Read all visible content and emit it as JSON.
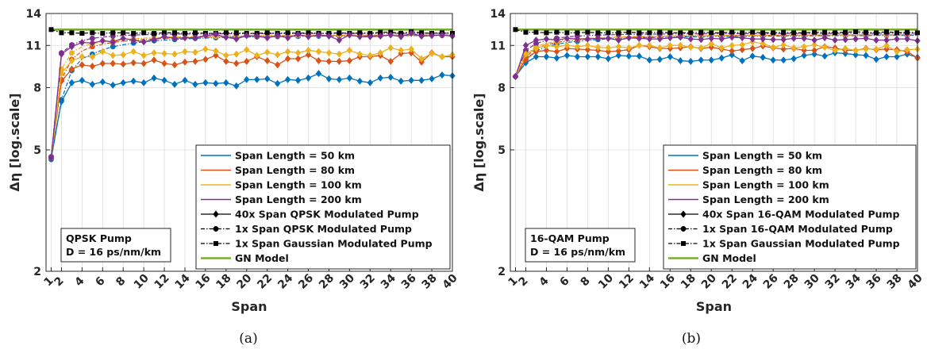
{
  "chart_data": [
    {
      "type": "line",
      "panel_caption": "(a)",
      "xlabel": "Span",
      "ylabel": "Δη [log.scale]",
      "xlim": [
        0.5,
        40
      ],
      "ylim": [
        2,
        14
      ],
      "yscale": "log",
      "xticks": [
        1,
        2,
        4,
        6,
        8,
        10,
        12,
        14,
        16,
        18,
        20,
        22,
        24,
        26,
        28,
        30,
        32,
        34,
        36,
        38,
        40
      ],
      "yticks": [
        2,
        5,
        8,
        11,
        14
      ],
      "grid": true,
      "legend_placement": "bottom-right",
      "info_box": [
        "QPSK Pump",
        "D = 16 ps/nm/km"
      ],
      "series": [
        {
          "name": "Span Length = 50 km",
          "style": "40x",
          "color": "#0072BD",
          "values": [
            4.7,
            7.2,
            8.3,
            8.45,
            8.2,
            8.35,
            8.15,
            8.3,
            8.4,
            8.3,
            8.6,
            8.45,
            8.2,
            8.45,
            8.2,
            8.3,
            8.25,
            8.3,
            8.1,
            8.5,
            8.5,
            8.55,
            8.25,
            8.5,
            8.45,
            8.6,
            8.9,
            8.55,
            8.5,
            8.6,
            8.4,
            8.3,
            8.6,
            8.65,
            8.4,
            8.45,
            8.45,
            8.55,
            8.8,
            8.75
          ]
        },
        {
          "name": "Span Length = 80 km",
          "style": "40x",
          "color": "#D95319",
          "values": [
            4.7,
            8.4,
            9.2,
            9.5,
            9.4,
            9.6,
            9.6,
            9.55,
            9.65,
            9.6,
            9.85,
            9.6,
            9.5,
            9.7,
            9.75,
            9.9,
            10.2,
            9.75,
            9.6,
            9.75,
            10.1,
            9.8,
            9.5,
            9.95,
            9.95,
            10.25,
            9.8,
            9.75,
            9.75,
            9.8,
            10.1,
            10.1,
            10.2,
            9.75,
            10.35,
            10.4,
            9.7,
            10.4,
            10.1,
            10.1
          ]
        },
        {
          "name": "Span Length = 100 km",
          "style": "40x",
          "color": "#EDB120",
          "values": [
            4.7,
            8.9,
            9.8,
            10.1,
            10.1,
            10.5,
            10.2,
            10.25,
            10.5,
            10.2,
            10.4,
            10.35,
            10.3,
            10.5,
            10.45,
            10.7,
            10.55,
            10.2,
            10.3,
            10.65,
            10.2,
            10.45,
            10.25,
            10.5,
            10.4,
            10.6,
            10.5,
            10.4,
            10.3,
            10.6,
            10.3,
            10.2,
            10.4,
            10.8,
            10.6,
            10.7,
            9.95,
            10.35,
            10.1,
            10.25
          ]
        },
        {
          "name": "Span Length = 200 km",
          "style": "40x",
          "color": "#7E2F8E",
          "values": [
            4.7,
            10.3,
            10.9,
            11.25,
            11.2,
            11.4,
            11.3,
            11.6,
            11.45,
            11.3,
            11.5,
            11.75,
            11.6,
            11.65,
            11.65,
            11.85,
            11.95,
            11.7,
            11.55,
            11.85,
            11.8,
            11.65,
            11.85,
            11.65,
            11.95,
            11.75,
            11.9,
            11.8,
            11.45,
            11.9,
            11.75,
            11.75,
            11.8,
            11.9,
            11.75,
            12.05,
            11.8,
            11.85,
            11.9,
            11.8
          ]
        },
        {
          "name": "40x Span QPSK Modulated Pump",
          "style": "40x",
          "color": "#000000",
          "values": []
        },
        {
          "name": "1x Span QPSK Modulated Pump",
          "style": "1x",
          "color": "#000000",
          "values": []
        },
        {
          "name": "1x Span Gaussian Modulated Pump",
          "style": "gauss",
          "color": "#000000",
          "values": []
        },
        {
          "name": "GN Model",
          "style": "gn",
          "color": "#77AC30",
          "values": []
        }
      ],
      "curves_1x": [
        {
          "color": "#0072BD",
          "values": [
            4.65,
            7.3,
            9.1,
            9.95,
            10.3,
            10.65,
            10.9,
            11.05,
            11.2,
            11.3,
            11.4,
            11.45,
            11.5,
            11.55,
            11.6,
            11.63,
            11.66,
            11.68,
            11.7,
            11.72,
            11.74,
            11.75,
            11.76,
            11.77,
            11.78,
            11.79,
            11.8,
            11.8,
            11.81,
            11.82,
            11.82,
            11.83,
            11.83,
            11.84,
            11.84,
            11.85,
            11.85,
            11.85,
            11.86,
            11.86
          ]
        },
        {
          "color": "#D95319",
          "values": [
            4.7,
            8.5,
            9.9,
            10.55,
            10.9,
            11.1,
            11.25,
            11.35,
            11.45,
            11.5,
            11.55,
            11.6,
            11.64,
            11.68,
            11.7,
            11.72,
            11.74,
            11.76,
            11.78,
            11.79,
            11.8,
            11.81,
            11.82,
            11.83,
            11.84,
            11.85,
            11.85,
            11.86,
            11.86,
            11.87,
            11.87,
            11.88,
            11.88,
            11.88,
            11.89,
            11.89,
            11.89,
            11.9,
            11.9,
            11.9
          ]
        },
        {
          "color": "#EDB120",
          "values": [
            4.7,
            9.2,
            10.4,
            10.9,
            11.15,
            11.3,
            11.4,
            11.5,
            11.56,
            11.62,
            11.66,
            11.7,
            11.73,
            11.75,
            11.77,
            11.79,
            11.8,
            11.82,
            11.83,
            11.84,
            11.85,
            11.86,
            11.87,
            11.87,
            11.88,
            11.88,
            11.89,
            11.89,
            11.9,
            11.9,
            11.9,
            11.91,
            11.91,
            11.91,
            11.92,
            11.92,
            11.92,
            11.92,
            11.93,
            11.93
          ]
        },
        {
          "color": "#7E2F8E",
          "values": [
            4.75,
            10.4,
            11.05,
            11.4,
            11.6,
            11.72,
            11.8,
            11.86,
            11.9,
            11.93,
            11.95,
            11.97,
            11.98,
            11.99,
            12.0,
            12.0,
            12.01,
            12.01,
            12.02,
            12.02,
            12.02,
            12.03,
            12.03,
            12.03,
            12.03,
            12.04,
            12.04,
            12.04,
            12.04,
            12.04,
            12.05,
            12.05,
            12.05,
            12.05,
            12.05,
            12.05,
            12.05,
            12.06,
            12.06,
            12.06
          ]
        }
      ],
      "gaussian_values": [
        12.4,
        12.1,
        12.1,
        12.05,
        12.1,
        12.05,
        12.1,
        12.1,
        12.05,
        12.1,
        12.05,
        12.1,
        12.1,
        12.05,
        12.1,
        12.05,
        12.05,
        12.1,
        12.1,
        12.05,
        12.05,
        12.1,
        12.05,
        12.1,
        12.05,
        12.1,
        12.05,
        12.05,
        12.1,
        12.05,
        12.1,
        12.05,
        12.15,
        12.15,
        12.05,
        12.2,
        12.1,
        12.05,
        12.1,
        12.05
      ],
      "gn_value": 12.4
    },
    {
      "type": "line",
      "panel_caption": "(b)",
      "xlabel": "Span",
      "ylabel": "Δη [log.scale]",
      "xlim": [
        0.5,
        40
      ],
      "ylim": [
        2,
        14
      ],
      "yscale": "log",
      "xticks": [
        1,
        2,
        4,
        6,
        8,
        10,
        12,
        14,
        16,
        18,
        20,
        22,
        24,
        26,
        28,
        30,
        32,
        34,
        36,
        38,
        40
      ],
      "yticks": [
        2,
        5,
        8,
        11,
        14
      ],
      "grid": true,
      "legend_placement": "bottom-right",
      "info_box": [
        "16-QAM Pump",
        "D = 16 ps/nm/km"
      ],
      "series": [
        {
          "name": "Span Length = 50 km",
          "style": "40x",
          "color": "#0072BD",
          "values": [
            8.7,
            9.65,
            10.1,
            10.1,
            10.0,
            10.2,
            10.1,
            10.1,
            10.1,
            9.95,
            10.2,
            10.15,
            10.15,
            9.85,
            9.9,
            10.1,
            9.8,
            9.75,
            9.85,
            9.85,
            10.0,
            10.25,
            9.8,
            10.15,
            10.05,
            9.85,
            9.85,
            9.95,
            10.2,
            10.3,
            10.15,
            10.4,
            10.35,
            10.25,
            10.2,
            9.9,
            10.1,
            10.1,
            10.3,
            10.05
          ]
        },
        {
          "name": "Span Length = 80 km",
          "style": "40x",
          "color": "#D95319",
          "values": [
            8.7,
            9.9,
            10.5,
            10.6,
            10.5,
            10.75,
            10.7,
            10.65,
            10.6,
            10.5,
            10.55,
            10.65,
            11.0,
            10.9,
            10.75,
            10.75,
            10.8,
            10.9,
            10.75,
            10.85,
            10.7,
            10.55,
            10.65,
            10.75,
            10.95,
            10.8,
            10.7,
            10.75,
            10.6,
            10.6,
            10.9,
            10.8,
            10.6,
            10.6,
            10.75,
            10.65,
            10.7,
            10.65,
            10.5,
            10.0
          ]
        },
        {
          "name": "Span Length = 100 km",
          "style": "40x",
          "color": "#EDB120",
          "values": [
            8.7,
            10.3,
            10.75,
            11.0,
            10.9,
            11.0,
            10.9,
            11.0,
            10.85,
            10.8,
            10.9,
            10.8,
            11.0,
            11.0,
            10.8,
            11.0,
            11.0,
            10.85,
            10.8,
            11.15,
            10.8,
            11.0,
            11.05,
            11.3,
            11.15,
            10.85,
            11.05,
            10.8,
            10.9,
            11.05,
            10.85,
            10.6,
            10.75,
            10.6,
            10.7,
            10.7,
            11.0,
            10.5,
            10.65,
            10.7
          ]
        },
        {
          "name": "Span Length = 200 km",
          "style": "40x",
          "color": "#7E2F8E",
          "values": [
            8.7,
            11.0,
            11.45,
            11.55,
            11.45,
            11.6,
            11.55,
            11.55,
            11.6,
            11.6,
            11.45,
            11.65,
            11.6,
            11.55,
            11.55,
            11.65,
            11.7,
            11.55,
            11.5,
            11.6,
            11.55,
            11.7,
            11.65,
            11.55,
            11.55,
            11.5,
            11.5,
            11.6,
            11.6,
            11.45,
            11.65,
            11.45,
            11.5,
            11.55,
            11.6,
            11.45,
            11.45,
            11.55,
            11.55,
            11.4
          ]
        },
        {
          "name": "40x Span 16-QAM Modulated Pump",
          "style": "40x",
          "color": "#000000",
          "values": []
        },
        {
          "name": "1x Span 16-QAM Modulated Pump",
          "style": "1x",
          "color": "#000000",
          "values": []
        },
        {
          "name": "1x Span Gaussian Modulated Pump",
          "style": "gauss",
          "color": "#000000",
          "values": []
        },
        {
          "name": "GN Model",
          "style": "gn",
          "color": "#77AC30",
          "values": []
        }
      ],
      "curves_1x": [
        {
          "color": "#0072BD",
          "values": [
            8.7,
            9.9,
            10.55,
            10.9,
            11.1,
            11.25,
            11.35,
            11.43,
            11.5,
            11.55,
            11.59,
            11.62,
            11.65,
            11.67,
            11.69,
            11.71,
            11.73,
            11.74,
            11.75,
            11.76,
            11.77,
            11.78,
            11.79,
            11.8,
            11.8,
            11.81,
            11.82,
            11.82,
            11.83,
            11.83,
            11.84,
            11.84,
            11.85,
            11.85,
            11.85,
            11.86,
            11.86,
            11.86,
            11.87,
            11.87
          ]
        },
        {
          "color": "#D95319",
          "values": [
            8.7,
            10.1,
            10.75,
            11.05,
            11.25,
            11.38,
            11.47,
            11.54,
            11.6,
            11.64,
            11.68,
            11.71,
            11.73,
            11.75,
            11.77,
            11.79,
            11.8,
            11.81,
            11.82,
            11.83,
            11.84,
            11.85,
            11.86,
            11.86,
            11.87,
            11.87,
            11.88,
            11.88,
            11.89,
            11.89,
            11.89,
            11.9,
            11.9,
            11.9,
            11.91,
            11.91,
            11.91,
            11.91,
            11.92,
            11.92
          ]
        },
        {
          "color": "#EDB120",
          "values": [
            8.7,
            10.3,
            10.9,
            11.18,
            11.35,
            11.47,
            11.55,
            11.61,
            11.66,
            11.7,
            11.73,
            11.76,
            11.78,
            11.8,
            11.81,
            11.83,
            11.84,
            11.85,
            11.86,
            11.87,
            11.87,
            11.88,
            11.89,
            11.89,
            11.9,
            11.9,
            11.91,
            11.91,
            11.91,
            11.92,
            11.92,
            11.92,
            11.93,
            11.93,
            11.93,
            11.93,
            11.94,
            11.94,
            11.94,
            11.94
          ]
        },
        {
          "color": "#7E2F8E",
          "values": [
            8.7,
            10.6,
            11.15,
            11.45,
            11.62,
            11.73,
            11.8,
            11.85,
            11.89,
            11.92,
            11.94,
            11.96,
            11.97,
            11.98,
            11.99,
            12.0,
            12.0,
            12.01,
            12.01,
            12.02,
            12.02,
            12.02,
            12.03,
            12.03,
            12.03,
            12.03,
            12.04,
            12.04,
            12.04,
            12.04,
            12.04,
            12.05,
            12.05,
            12.05,
            12.05,
            12.05,
            12.05,
            12.05,
            12.06,
            12.06
          ]
        }
      ],
      "gaussian_values": [
        12.4,
        12.15,
        12.15,
        12.1,
        12.15,
        12.1,
        12.1,
        12.15,
        12.1,
        12.1,
        12.1,
        12.15,
        12.1,
        12.1,
        12.15,
        12.1,
        12.1,
        12.1,
        12.15,
        12.1,
        12.1,
        12.15,
        12.1,
        12.15,
        12.1,
        12.1,
        12.15,
        12.1,
        12.1,
        12.15,
        12.15,
        12.1,
        12.15,
        12.2,
        12.15,
        12.1,
        12.2,
        12.1,
        12.15,
        12.1
      ],
      "gn_value": 12.4
    }
  ]
}
